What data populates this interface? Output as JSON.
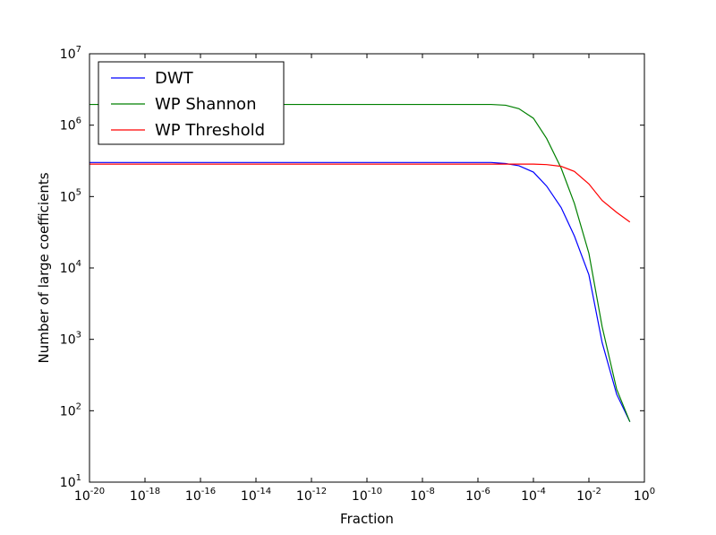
{
  "chart_data": {
    "type": "line",
    "title": "",
    "xlabel": "Fraction",
    "ylabel": "Number of large coefficients",
    "xscale": "log",
    "yscale": "log",
    "xlim": [
      1e-20,
      1
    ],
    "ylim": [
      10,
      10000000
    ],
    "grid": false,
    "legend_position": "top-left",
    "x_ticks": [
      {
        "base": "10",
        "exp": "-20",
        "value": 1e-20
      },
      {
        "base": "10",
        "exp": "-18",
        "value": 1e-18
      },
      {
        "base": "10",
        "exp": "-16",
        "value": 1e-16
      },
      {
        "base": "10",
        "exp": "-14",
        "value": 1e-14
      },
      {
        "base": "10",
        "exp": "-12",
        "value": 1e-12
      },
      {
        "base": "10",
        "exp": "-10",
        "value": 1e-10
      },
      {
        "base": "10",
        "exp": "-8",
        "value": 1e-08
      },
      {
        "base": "10",
        "exp": "-6",
        "value": 1e-06
      },
      {
        "base": "10",
        "exp": "-4",
        "value": 0.0001
      },
      {
        "base": "10",
        "exp": "-2",
        "value": 0.01
      },
      {
        "base": "10",
        "exp": "0",
        "value": 1
      }
    ],
    "y_ticks": [
      {
        "base": "10",
        "exp": "1",
        "value": 10
      },
      {
        "base": "10",
        "exp": "2",
        "value": 100
      },
      {
        "base": "10",
        "exp": "3",
        "value": 1000
      },
      {
        "base": "10",
        "exp": "4",
        "value": 10000
      },
      {
        "base": "10",
        "exp": "5",
        "value": 100000
      },
      {
        "base": "10",
        "exp": "6",
        "value": 1000000
      },
      {
        "base": "10",
        "exp": "7",
        "value": 10000000
      }
    ],
    "series": [
      {
        "name": "DWT",
        "color": "#0000ff",
        "x": [
          1e-20,
          1e-06,
          3e-06,
          1e-05,
          3e-05,
          0.0001,
          0.0003,
          0.001,
          0.003,
          0.01,
          0.03,
          0.1,
          0.3
        ],
        "y": [
          300000,
          300000,
          300000,
          290000,
          270000,
          220000,
          140000,
          70000,
          28000,
          8000,
          900,
          170,
          70
        ]
      },
      {
        "name": "WP Shannon",
        "color": "#008000",
        "x": [
          1e-20,
          1e-06,
          3e-06,
          1e-05,
          3e-05,
          0.0001,
          0.0003,
          0.001,
          0.003,
          0.01,
          0.03,
          0.1,
          0.3
        ],
        "y": [
          1950000,
          1950000,
          1950000,
          1900000,
          1700000,
          1250000,
          650000,
          250000,
          80000,
          16000,
          1500,
          200,
          70
        ]
      },
      {
        "name": "WP Threshold",
        "color": "#ff0000",
        "x": [
          1e-20,
          1e-06,
          1e-05,
          0.0001,
          0.0003,
          0.001,
          0.003,
          0.01,
          0.03,
          0.1,
          0.3
        ],
        "y": [
          285000,
          285000,
          285000,
          285000,
          280000,
          265000,
          225000,
          150000,
          88000,
          60000,
          44000
        ]
      }
    ]
  }
}
